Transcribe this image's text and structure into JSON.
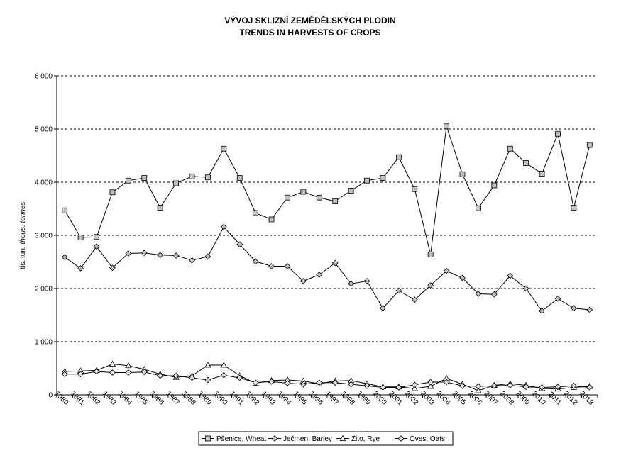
{
  "chart_data": {
    "type": "line",
    "title": "VÝVOJ SKLIZNÍ ZEMĚDĚLSKÝCH PLODIN",
    "subtitle": "TRENDS IN HARVESTS OF CROPS",
    "ylabel_main": "tis. tun, ",
    "ylabel_italic": "thous. tonnes",
    "xlabel": "",
    "ylim": [
      0,
      6000
    ],
    "yticks": [
      0,
      1000,
      2000,
      3000,
      4000,
      5000,
      6000
    ],
    "ytick_labels": [
      "0",
      "1 000",
      "2 000",
      "3 000",
      "4 000",
      "5 000",
      "6 000"
    ],
    "grid": "horizontal-dashed",
    "legend_position": "bottom",
    "categories": [
      "1980",
      "1981",
      "1982",
      "1983",
      "1984",
      "1985",
      "1986",
      "1987",
      "1988",
      "1989",
      "1990",
      "1991",
      "1992",
      "1993",
      "1994",
      "1995",
      "1996",
      "1997",
      "1998",
      "1999",
      "2000",
      "2001",
      "2002",
      "2003",
      "2004",
      "2005",
      "2006",
      "2007",
      "2008",
      "2009",
      "2010",
      "2011",
      "2012",
      "2013"
    ],
    "series": [
      {
        "name": "Pšenice, Wheat",
        "marker": "square",
        "color": "#000000",
        "fill": "#c0c0c0",
        "values": [
          3470,
          2960,
          2970,
          3810,
          4030,
          4080,
          3520,
          3980,
          4110,
          4090,
          4630,
          4080,
          3420,
          3300,
          3710,
          3820,
          3710,
          3640,
          3840,
          4030,
          4080,
          4470,
          3870,
          2640,
          5050,
          4150,
          3510,
          3940,
          4630,
          4360,
          4160,
          4910,
          3520,
          4700
        ]
      },
      {
        "name": "Ječmen, Barley",
        "marker": "diamond",
        "color": "#000000",
        "fill": "#c0c0c0",
        "values": [
          2590,
          2380,
          2790,
          2390,
          2660,
          2670,
          2630,
          2620,
          2530,
          2600,
          3160,
          2830,
          2510,
          2420,
          2420,
          2140,
          2260,
          2480,
          2090,
          2140,
          1630,
          1960,
          1790,
          2060,
          2330,
          2200,
          1900,
          1890,
          2240,
          2000,
          1580,
          1810,
          1630,
          1600
        ]
      },
      {
        "name": "Žito, Rye",
        "marker": "triangle",
        "color": "#000000",
        "fill": "#ffffff",
        "values": [
          440,
          450,
          460,
          580,
          550,
          480,
          390,
          330,
          360,
          560,
          560,
          360,
          220,
          270,
          280,
          260,
          210,
          260,
          270,
          210,
          150,
          150,
          120,
          160,
          310,
          200,
          80,
          180,
          210,
          180,
          120,
          110,
          140,
          160
        ]
      },
      {
        "name": "Oves, Oats",
        "marker": "diamond",
        "color": "#000000",
        "fill": "#e0e0e0",
        "values": [
          390,
          390,
          440,
          420,
          420,
          430,
          360,
          360,
          320,
          280,
          370,
          320,
          230,
          250,
          220,
          200,
          230,
          230,
          200,
          170,
          140,
          140,
          190,
          240,
          240,
          170,
          160,
          170,
          180,
          150,
          140,
          150,
          170,
          140
        ]
      }
    ]
  }
}
